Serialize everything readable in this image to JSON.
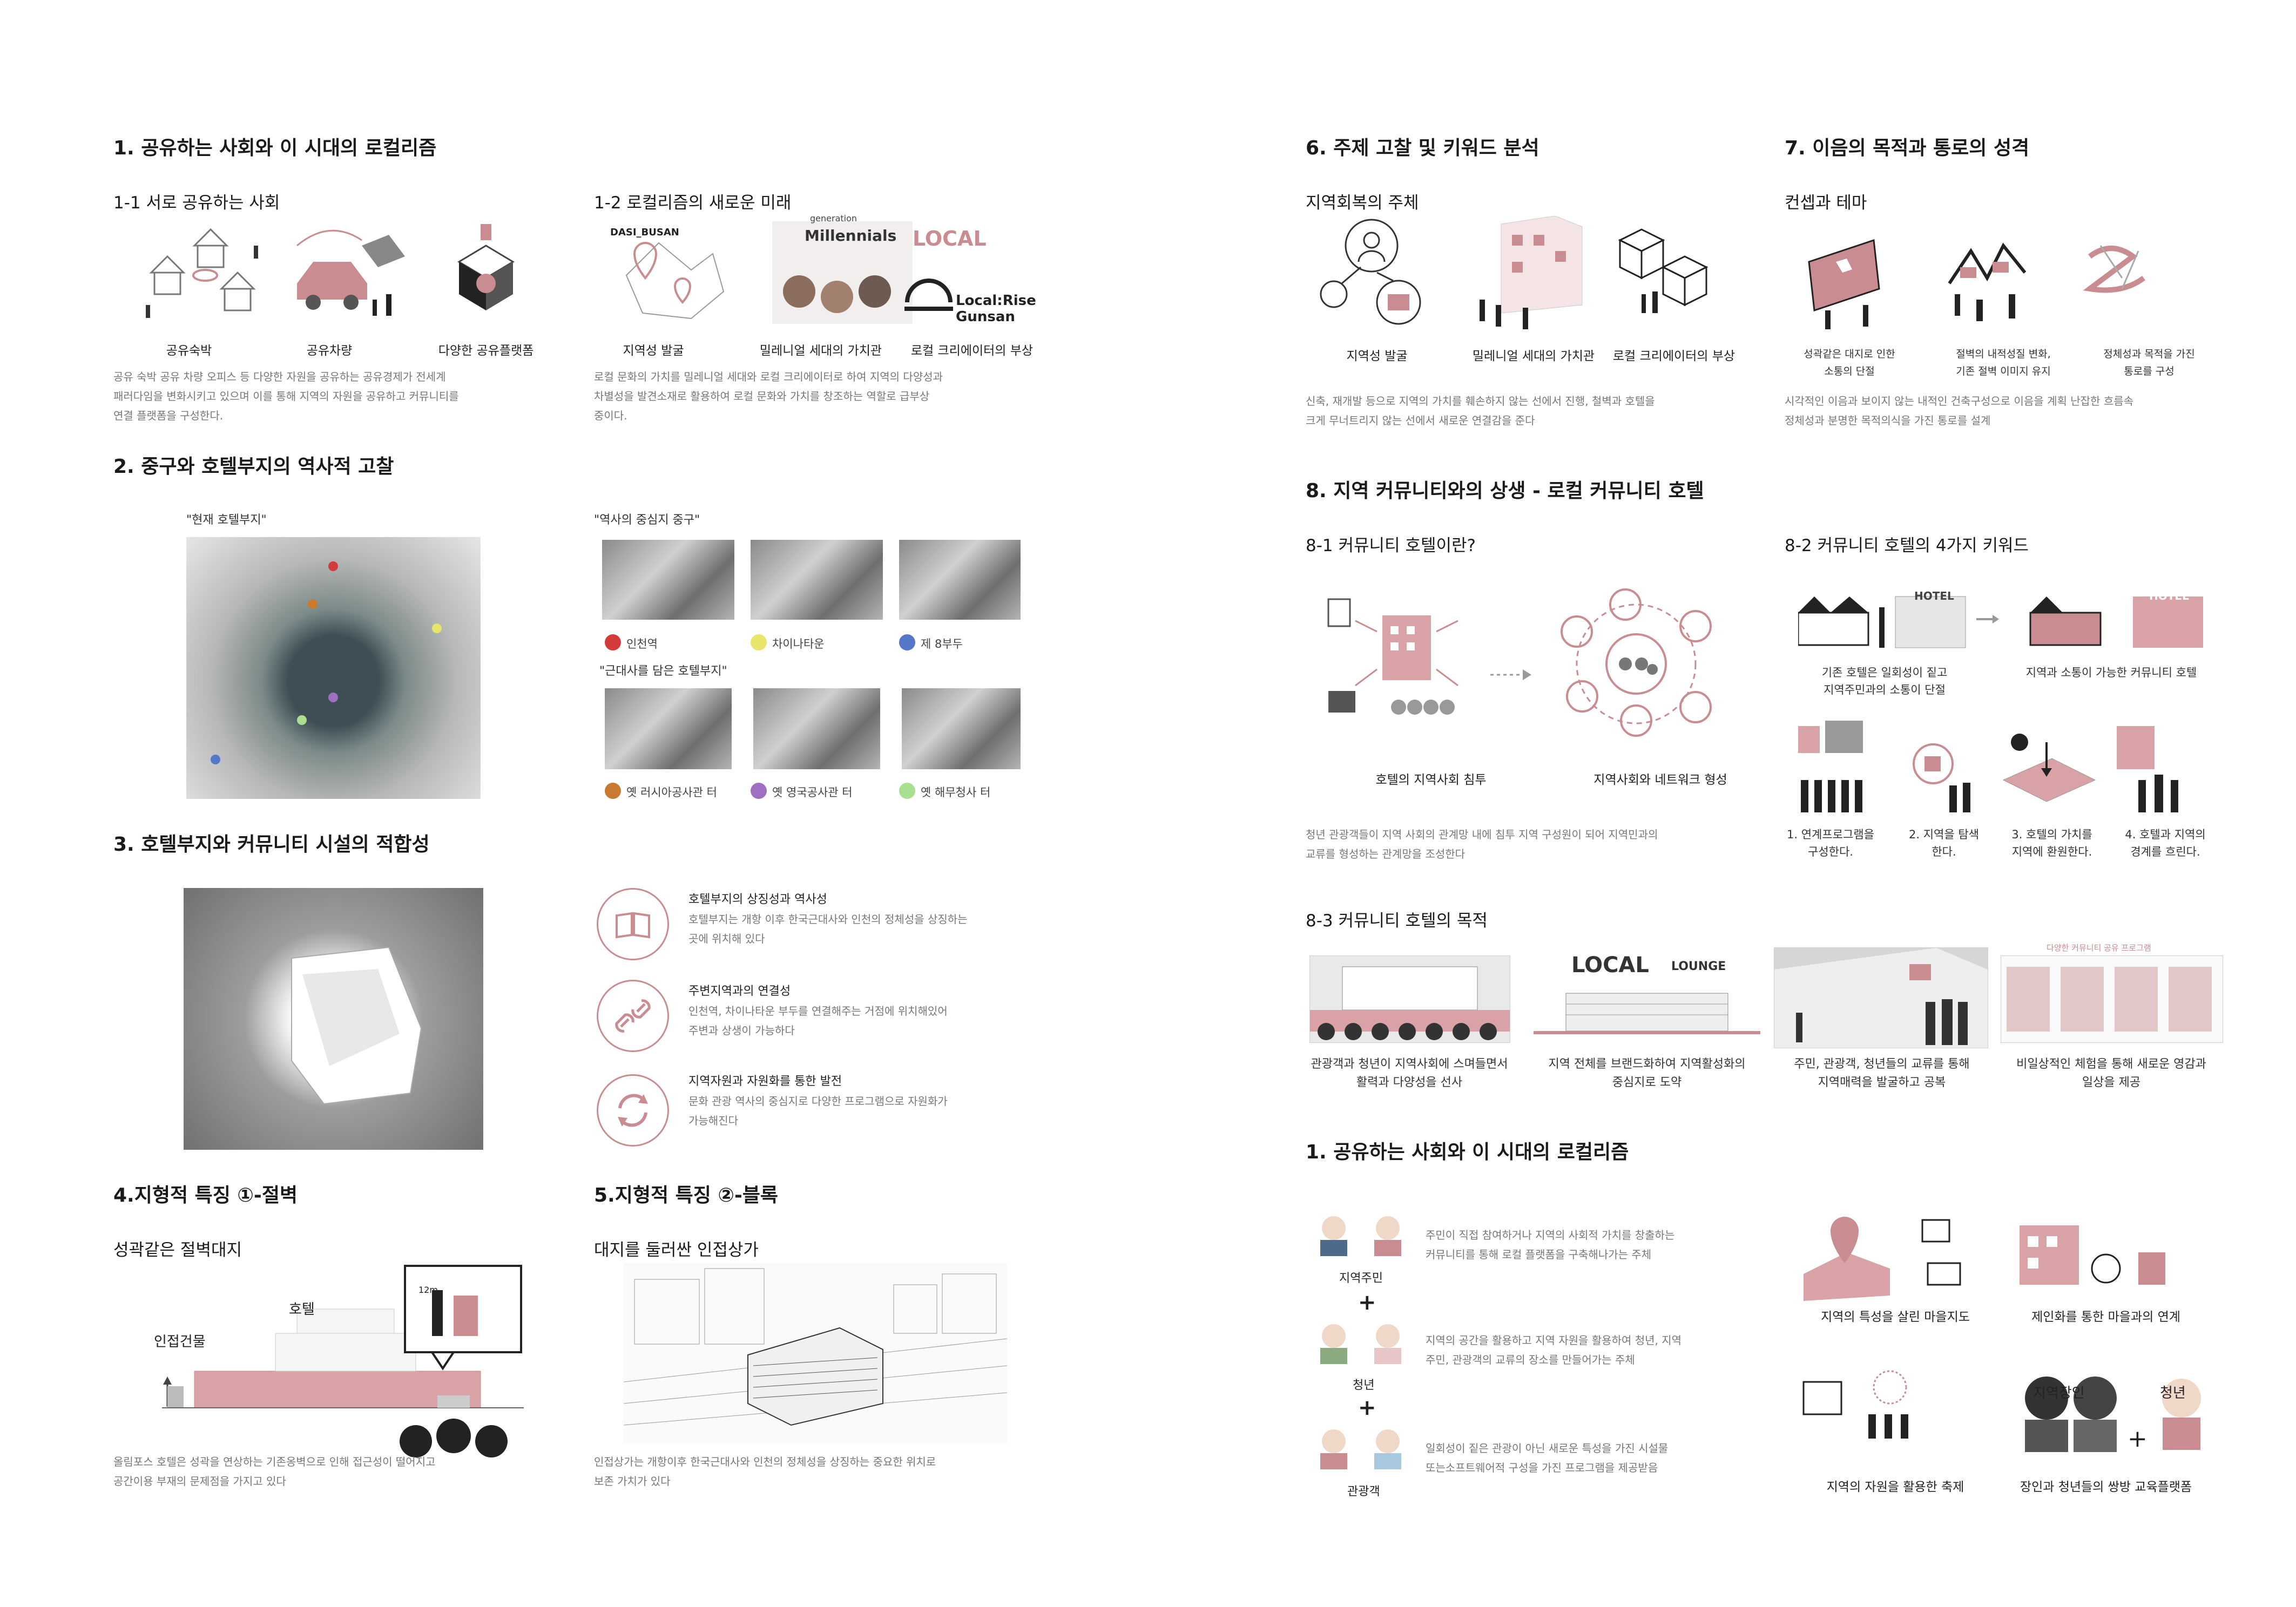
{
  "sec1": {
    "title": "1. 공유하는 사회와 이 시대의 로컬리즘",
    "sub1": "1-1 서로 공유하는 사회",
    "icons1": [
      "공유숙박",
      "공유차량",
      "다양한 공유플랫폼"
    ],
    "body1": [
      "공유 숙박 공유 차량 오피스 등 다양한 자원을 공유하는 공유경제가 전세계",
      "패러다임을 변화시키고 있으며 이를 통해 지역의 자원을 공유하고 커뮤니티를",
      "연결 플랫폼을 구성한다."
    ],
    "sub2": "1-2 로컬리즘의 새로운 미래",
    "icons2": [
      "지역성 발굴",
      "밀레니얼 세대의 가치관",
      "로컬 크리에이터의 부상"
    ],
    "logo_texts": [
      "DASI_BUSAN",
      "Millennials",
      "generation",
      "LOCAL",
      "Local:Rise",
      "Gunsan"
    ],
    "body2": [
      "로컬 문화의 가치를 밀레니얼 세대와 로컬 크리에이터로 하여 지역의 다양성과",
      "차별성을 발견소재로 활용하여 로컬 문화와 가치를 창조하는 역할로 급부상",
      "중이다."
    ]
  },
  "sec2": {
    "title": "2. 중구와 호텔부지의 역사적 고찰",
    "quote_site": "\"현재 호텔부지\"",
    "quote_center": "\"역사의 중심지 중구\"",
    "quote_modern": "\"근대사를 담은 호텔부지\"",
    "legend_top": [
      {
        "label": "인천역",
        "color": "#d33a3a"
      },
      {
        "label": "차이나타운",
        "color": "#e6e66a"
      },
      {
        "label": "제 8부두",
        "color": "#5577c8"
      }
    ],
    "legend_bottom": [
      {
        "label": "옛 러시아공사관 터",
        "color": "#c87a30"
      },
      {
        "label": "옛 영국공사관 터",
        "color": "#a070c0"
      },
      {
        "label": "옛 해무청사 터",
        "color": "#a8e090"
      }
    ]
  },
  "sec3": {
    "title": "3. 호텔부지와 커뮤니티 시설의 적합성",
    "items": [
      {
        "title": "호텔부지의 상징성과 역사성",
        "lines": [
          "호텔부지는 개항 이후 한국근대사와 인천의 정체성을 상징하는",
          "곳에 위치해 있다"
        ]
      },
      {
        "title": "주변지역과의 연결성",
        "lines": [
          "인천역, 차이나타운 부두를 연결해주는 거점에 위치해있어",
          "주변과 상생이 가능하다"
        ]
      },
      {
        "title": "지역자원과 자원화를 통한 발전",
        "lines": [
          "문화 관광 역사의 중심지로 다양한 프로그램으로 자원화가",
          "가능해진다"
        ]
      }
    ]
  },
  "sec4": {
    "title": "4.지형적 특징 ①-절벽",
    "sub": "성곽같은 절벽대지",
    "label_hotel": "호텔",
    "label_adjacent": "인접건물",
    "label_height": "12m",
    "body": [
      "올림포스 호텔은 성곽을 연상하는 기존옹벽으로 인해 접근성이 떨어지고",
      "공간이용 부재의 문제점을 가지고 있다"
    ]
  },
  "sec5": {
    "title": "5.지형적 특징 ②-블록",
    "sub": "대지를 둘러싼 인접상가",
    "body": [
      "인접상가는 개항이후 한국근대사와 인천의 정체성을 상징하는 중요한 위치로",
      "보존 가치가 있다"
    ]
  },
  "sec6": {
    "title": "6. 주제 고찰 및 키워드 분석",
    "sub": "지역회복의 주체",
    "icons": [
      "지역성 발굴",
      "밀레니얼 세대의 가치관",
      "로컬 크리에이터의 부상"
    ],
    "body": [
      "신축, 재개발 등으로 지역의 가치를 훼손하지 않는 선에서 진행, 철벽과 호텔을",
      "크게 무너트리지 않는 선에서 새로운 연결감을 준다"
    ]
  },
  "sec7": {
    "title": "7. 이음의 목적과 통로의 성격",
    "sub": "컨셉과 테마",
    "icons": [
      [
        "성곽같은 대지로 인한",
        "소통의 단절"
      ],
      [
        "절벽의 내적성질 변화,",
        "기존 절벽 이미지 유지"
      ],
      [
        "정체성과 목적을 가진",
        "통로를 구성"
      ]
    ],
    "body": [
      "시각적인 이음과 보이지 않는 내적인 건축구성으로 이음을 계획 난잡한 흐름속",
      "정체성과 분명한 목적의식을 가진 통로를 설계"
    ]
  },
  "sec8": {
    "title": "8. 지역 커뮤니티와의 상생 - 로컬 커뮤니티 호텔",
    "sub1": "8-1 커뮤니티 호텔이란?",
    "caps1": [
      "호텔의 지역사회 침투",
      "지역사회와 네트워크 형성"
    ],
    "body1": [
      "청년 관광객들이 지역 사회의 관계망 내에 침투 지역 구성원이 되어 지역민과의",
      "교류를 형성하는 관계망을 조성한다"
    ],
    "sub2": "8-2 커뮤니티 호텔의 4가지 키워드",
    "hotel_sign": "HOTEL",
    "caps2_top": [
      [
        "기존 호텔은 일회성이 짙고",
        "지역주민과의 소통이 단절"
      ],
      [
        "지역과 소통이 가능한 커뮤니티 호텔"
      ]
    ],
    "keywords": [
      [
        "1. 연계프로그램을",
        "구성한다."
      ],
      [
        "2. 지역을 탐색",
        "한다."
      ],
      [
        "3. 호텔의 가치를",
        "지역에 환원한다."
      ],
      [
        "4. 호텔과 지역의",
        "경계를 흐린다."
      ]
    ],
    "sub3": "8-3 커뮤니티 호텔의 목적",
    "local_lounge": [
      "LOCAL",
      "LOUNGE"
    ],
    "share_program": "다양한 커뮤니티 공유 프로그램",
    "purposes": [
      [
        "관광객과 청년이 지역사회에 스며들면서",
        "활력과 다양성을 선사"
      ],
      [
        "지역 전체를 브랜드화하여 지역활성화의",
        "중심지로 도약"
      ],
      [
        "주민, 관광객, 청년들의 교류를 통해",
        "지역매력을 발굴하고 공복"
      ],
      [
        "비일상적인 체험을 통해 새로운 영감과",
        "일상을 제공"
      ]
    ]
  },
  "sec9": {
    "title": "1. 공유하는 사회와 이 시대의 로컬리즘",
    "roles": [
      {
        "label": "지역주민",
        "lines": [
          "주민이 직접 참여하거나 지역의 사회적 가치를 창출하는",
          "커뮤니티를 통해 로컬 플랫폼을 구축해나가는 주체"
        ]
      },
      {
        "label": "청년",
        "lines": [
          "지역의 공간을 활용하고 지역 자원을 활용하여 청년, 지역",
          "주민, 관광객의 교류의 장소를 만들어가는 주체"
        ]
      },
      {
        "label": "관광객",
        "lines": [
          "일회성이 짙은 관광이 아닌 새로운 특성을 가진 시설물",
          "또는소프트웨어적 구성을 가진 프로그램을 제공받음"
        ]
      }
    ],
    "plus": "+",
    "caps": [
      "지역의 특성을 살린 마을지도",
      "제인화를 통한 마을과의 연계",
      "지역의 자원을 활용한 축제",
      "장인과 청년들의 쌍방 교육플랫폼"
    ],
    "craft_labels": [
      "지역장인",
      "청년"
    ]
  },
  "colors": {
    "accent": "#c98c90",
    "accent_light": "#e8c6c8",
    "text": "#222222",
    "muted": "#777777"
  }
}
